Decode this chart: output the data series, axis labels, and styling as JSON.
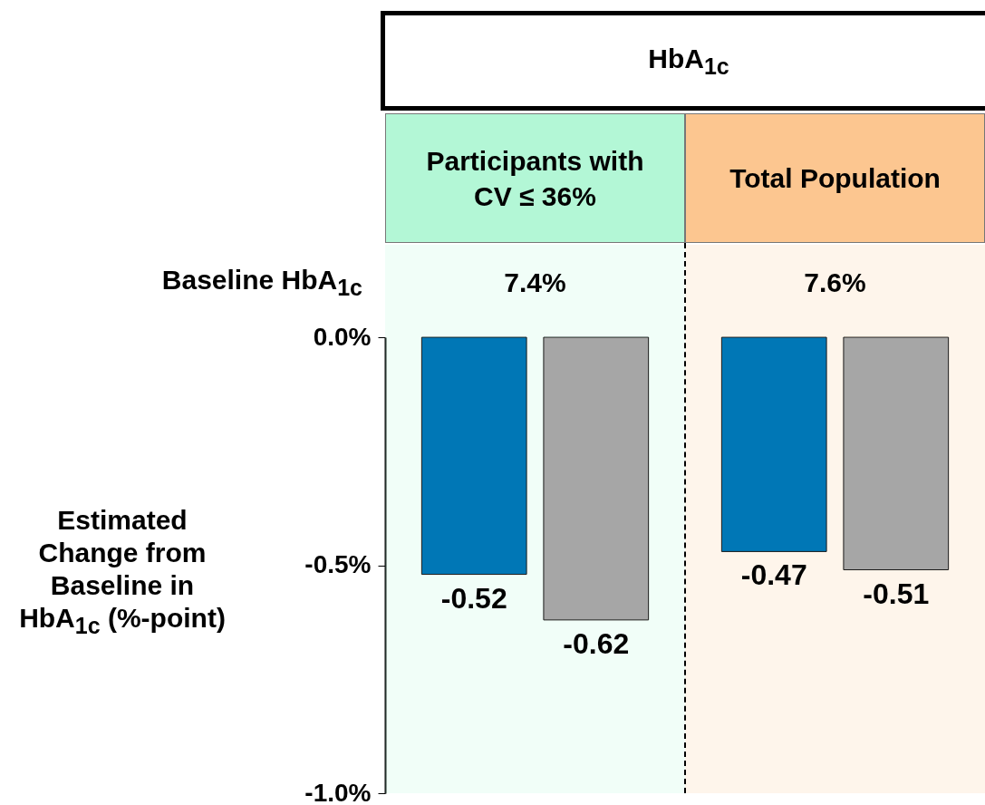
{
  "chart_data": {
    "type": "bar",
    "title": "HbA$_{1c}$",
    "ylabel": "Estimated Change from Baseline in HbA$_{1c}$ (%-point)",
    "categories": [
      "Participants with CV ≤ 36%",
      "Total Population"
    ],
    "series": [
      {
        "color": "#0077b6",
        "values": [
          -0.52,
          -0.47
        ]
      },
      {
        "color": "#a6a6a6",
        "values": [
          -0.62,
          -0.51
        ]
      }
    ],
    "ylim": [
      -1,
      0
    ],
    "yticks": [
      {
        "value": -1,
        "label": "-1.0%"
      },
      {
        "value": -0.5,
        "label": "-0.5%"
      },
      {
        "value": 0,
        "label": "0.0%"
      }
    ],
    "data_labels": true,
    "bands": [
      {
        "axis": "x",
        "from": "Participants with CV ≤ 36%",
        "to": "Participants with CV ≤ 36%",
        "color": "#b3f7d6"
      },
      {
        "axis": "x",
        "from": "Total Population",
        "to": "Total Population",
        "color": "#fcc690"
      }
    ],
    "annotations": [
      "Baseline HbA$_{1c}$",
      "7.4%",
      "7.6%"
    ]
  }
}
